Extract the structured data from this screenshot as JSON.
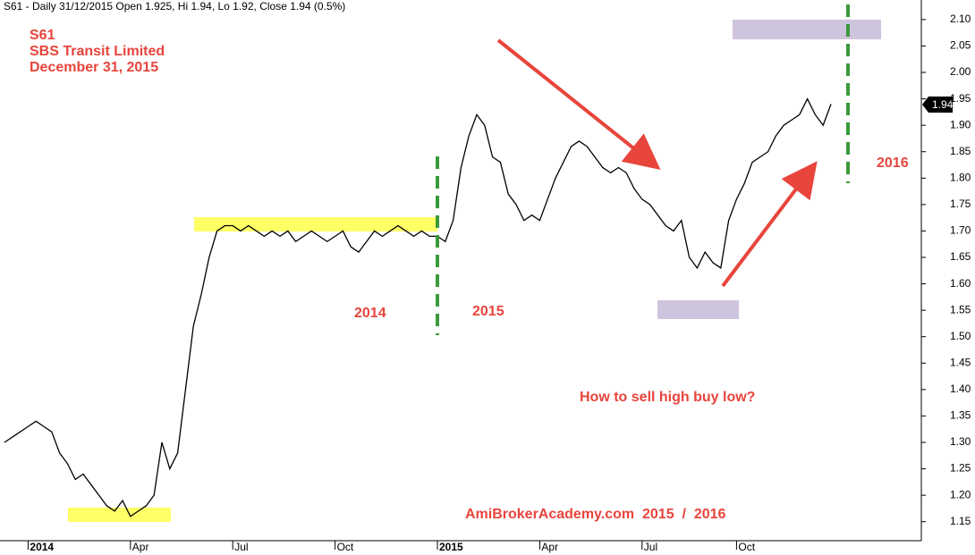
{
  "chart_data": {
    "type": "line",
    "title": "S61 - Daily 31/12/2015 Open 1.925, Hi 1.94, Lo 1.92, Close 1.94 (0.5%)",
    "annotations": [
      "S61",
      "SBS Transit Limited",
      "December 31, 2015",
      "2014",
      "2015",
      "2016",
      "How to sell high buy low?",
      "AmiBrokerAcademy.com  2015  /  2016"
    ],
    "last_close": 1.94,
    "color": "#000000",
    "categories": [
      null,
      null,
      null,
      "2014",
      null,
      null,
      null,
      null,
      null,
      null,
      null,
      null,
      null,
      null,
      null,
      null,
      "Apr",
      null,
      null,
      null,
      null,
      null,
      null,
      null,
      null,
      null,
      null,
      null,
      null,
      "Jul",
      null,
      null,
      null,
      null,
      null,
      null,
      null,
      null,
      null,
      null,
      null,
      null,
      "Oct",
      null,
      null,
      null,
      null,
      null,
      null,
      null,
      null,
      null,
      null,
      null,
      null,
      "2015",
      null,
      null,
      null,
      null,
      null,
      null,
      null,
      null,
      null,
      null,
      null,
      null,
      "Apr",
      null,
      null,
      null,
      null,
      null,
      null,
      null,
      null,
      null,
      null,
      null,
      null,
      "Jul",
      null,
      null,
      null,
      null,
      null,
      null,
      null,
      null,
      null,
      null,
      null,
      "Oct",
      null,
      null,
      null,
      null,
      null,
      null,
      null,
      null,
      null,
      null,
      null,
      null
    ],
    "values": [
      1.3,
      1.31,
      1.32,
      1.33,
      1.34,
      1.33,
      1.32,
      1.28,
      1.26,
      1.23,
      1.24,
      1.22,
      1.2,
      1.18,
      1.17,
      1.19,
      1.16,
      1.17,
      1.18,
      1.2,
      1.3,
      1.25,
      1.28,
      1.4,
      1.52,
      1.58,
      1.65,
      1.7,
      1.71,
      1.71,
      1.7,
      1.71,
      1.7,
      1.69,
      1.7,
      1.69,
      1.7,
      1.68,
      1.69,
      1.7,
      1.69,
      1.68,
      1.69,
      1.7,
      1.67,
      1.66,
      1.68,
      1.7,
      1.69,
      1.7,
      1.71,
      1.7,
      1.69,
      1.7,
      1.69,
      1.69,
      1.68,
      1.72,
      1.82,
      1.88,
      1.92,
      1.9,
      1.84,
      1.83,
      1.77,
      1.75,
      1.72,
      1.73,
      1.72,
      1.76,
      1.8,
      1.83,
      1.86,
      1.87,
      1.86,
      1.84,
      1.82,
      1.81,
      1.82,
      1.81,
      1.78,
      1.76,
      1.75,
      1.73,
      1.71,
      1.7,
      1.72,
      1.65,
      1.63,
      1.66,
      1.64,
      1.63,
      1.72,
      1.76,
      1.79,
      1.83,
      1.84,
      1.85,
      1.88,
      1.9,
      1.91,
      1.92,
      1.95,
      1.92,
      1.9,
      1.94
    ],
    "ylim": [
      1.114,
      2.137
    ],
    "yticks": [
      1.15,
      {
        "value": 1.2,
        "label": "1.20"
      },
      1.25,
      {
        "value": 1.3,
        "label": "1.30"
      },
      1.35,
      {
        "value": 1.4,
        "label": "1.40"
      },
      1.45,
      {
        "value": 1.5,
        "label": "1.50"
      },
      1.55,
      {
        "value": 1.6,
        "label": "1.60"
      },
      1.65,
      {
        "value": 1.7,
        "label": "1.70"
      },
      1.75,
      {
        "value": 1.8,
        "label": "1.80"
      },
      1.85,
      {
        "value": 1.9,
        "label": "1.90"
      },
      1.95,
      {
        "value": 2,
        "label": "2.00"
      },
      2.05,
      {
        "value": 2.1,
        "label": "2.10"
      }
    ]
  }
}
